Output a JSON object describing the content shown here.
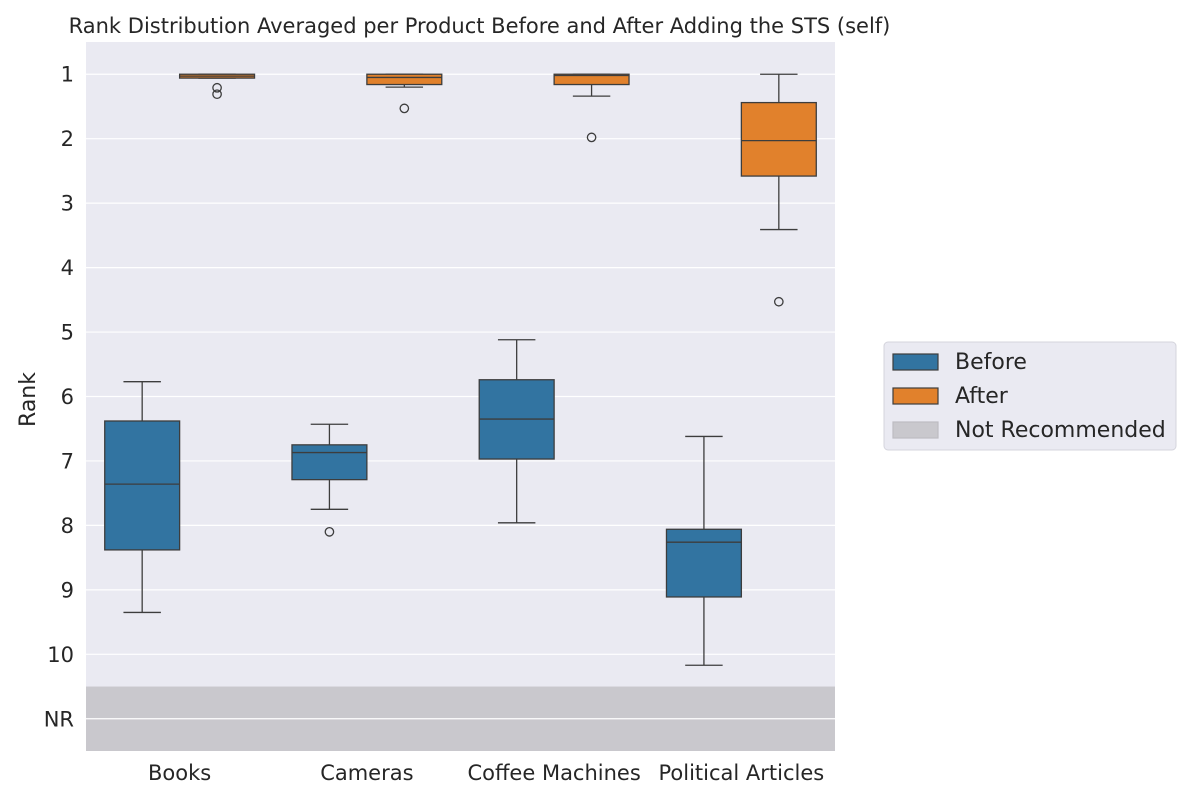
{
  "chart_data": {
    "type": "box",
    "title": "Rank Distribution Averaged per Product Before and After Adding the STS (self)",
    "xlabel": "",
    "ylabel": "Rank",
    "categories": [
      "Books",
      "Cameras",
      "Coffee Machines",
      "Political Articles"
    ],
    "y_ticks": [
      "1",
      "2",
      "3",
      "4",
      "5",
      "6",
      "7",
      "8",
      "9",
      "10",
      "NR"
    ],
    "y_tick_values": [
      1,
      2,
      3,
      4,
      5,
      6,
      7,
      8,
      9,
      10,
      11
    ],
    "ylim": [
      0.5,
      11.5
    ],
    "y_inverted": true,
    "grid": true,
    "legend_position": "right",
    "not_recommended": {
      "label": "Not Recommended",
      "y_from": 10.5,
      "y_to": 11.5,
      "color": "#c9c8cd"
    },
    "series": [
      {
        "name": "Before",
        "color": "#3274a1",
        "boxes": [
          {
            "whisker_low": 5.77,
            "q1": 6.38,
            "median": 7.36,
            "q3": 8.38,
            "whisker_high": 9.35,
            "outliers": []
          },
          {
            "whisker_low": 6.43,
            "q1": 6.75,
            "median": 6.87,
            "q3": 7.29,
            "whisker_high": 7.75,
            "outliers": [
              8.1
            ]
          },
          {
            "whisker_low": 5.12,
            "q1": 5.74,
            "median": 6.35,
            "q3": 6.97,
            "whisker_high": 7.96,
            "outliers": []
          },
          {
            "whisker_low": 6.62,
            "q1": 8.06,
            "median": 8.26,
            "q3": 9.11,
            "whisker_high": 10.17,
            "outliers": []
          }
        ]
      },
      {
        "name": "After",
        "color": "#e1812c",
        "boxes": [
          {
            "whisker_low": 1.0,
            "q1": 1.0,
            "median": 1.03,
            "q3": 1.06,
            "whisker_high": 1.06,
            "outliers": [
              1.21,
              1.31
            ]
          },
          {
            "whisker_low": 1.0,
            "q1": 1.0,
            "median": 1.05,
            "q3": 1.16,
            "whisker_high": 1.2,
            "outliers": [
              1.53
            ]
          },
          {
            "whisker_low": 1.0,
            "q1": 1.0,
            "median": 1.02,
            "q3": 1.16,
            "whisker_high": 1.34,
            "outliers": [
              1.98
            ]
          },
          {
            "whisker_low": 1.0,
            "q1": 1.44,
            "median": 2.03,
            "q3": 2.58,
            "whisker_high": 3.41,
            "outliers": [
              4.53
            ]
          }
        ]
      }
    ]
  }
}
